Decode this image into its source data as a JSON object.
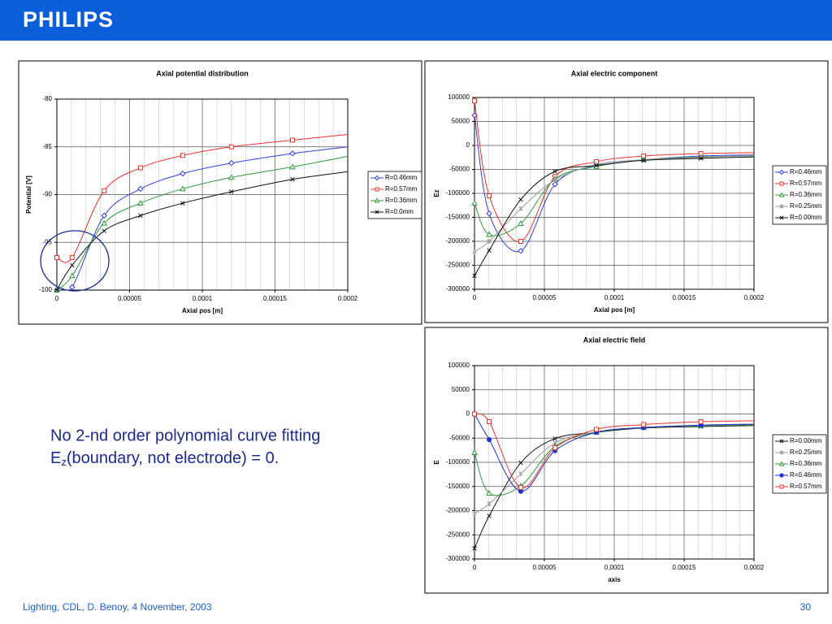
{
  "header": {
    "logo": "PHILIPS"
  },
  "body": {
    "line1": "No 2-nd order polynomial curve fitting",
    "line2": {
      "symbol": "E",
      "subscript": "z",
      "rest": "(boundary, not electrode) = 0."
    }
  },
  "footer": {
    "text": "Lighting, CDL, D. Benoy, 4 November, 2003",
    "page": "30"
  },
  "chart_data": [
    {
      "type": "line",
      "title": "Axial potential distribution",
      "x_label": "Axial pos [m]",
      "y_label": "Potential [V]",
      "x": [
        0,
        1.05e-05,
        3.25e-05,
        5.75e-05,
        8.65e-05,
        0.00012,
        0.000162,
        0.0002
      ],
      "xlim": [
        0,
        0.0002
      ],
      "xticks": [
        0,
        5e-05,
        0.0001,
        0.00015,
        0.0002
      ],
      "ylim": [
        -100,
        -80
      ],
      "yticks": [
        -100,
        -95,
        -90,
        -85,
        -80
      ],
      "grid": true,
      "legend": "right",
      "series": [
        {
          "name": "R=0.46mm",
          "color": "#2f3fe0",
          "marker": "diamond",
          "values": [
            -100,
            -99.7,
            -92.2,
            -89.4,
            -87.8,
            -86.7,
            -85.7,
            -85.0
          ]
        },
        {
          "name": "R=0.57mm",
          "color": "#e8322e",
          "marker": "square",
          "values": [
            -96.6,
            -96.6,
            -89.6,
            -87.2,
            -85.9,
            -85.0,
            -84.3,
            -83.7
          ]
        },
        {
          "name": "R=0.36mm",
          "color": "#2e9a3a",
          "marker": "triangle",
          "values": [
            -100,
            -98.5,
            -93.0,
            -90.9,
            -89.4,
            -88.2,
            -87.1,
            -86.0
          ]
        },
        {
          "name": "R=0.0mm",
          "color": "#111111",
          "marker": "x",
          "values": [
            -100,
            -97.4,
            -93.8,
            -92.2,
            -90.9,
            -89.7,
            -88.4,
            -87.6
          ]
        }
      ]
    },
    {
      "type": "line",
      "title": "Axial electric component",
      "x_label": "Axial pos [m]",
      "y_label": "Ez",
      "x": [
        0,
        1.05e-05,
        3.31e-05,
        5.76e-05,
        8.72e-05,
        0.000121,
        0.000162,
        0.0002
      ],
      "xlim": [
        0,
        0.0002
      ],
      "xticks": [
        0,
        5e-05,
        0.0001,
        0.00015,
        0.0002
      ],
      "ylim": [
        -300000,
        100000
      ],
      "yticks": [
        -300000,
        -250000,
        -200000,
        -150000,
        -100000,
        -50000,
        0,
        50000,
        100000
      ],
      "grid": true,
      "legend": "right",
      "series": [
        {
          "name": "R=0.46mm",
          "color": "#2f3fe0",
          "marker": "diamond",
          "values": [
            62700,
            -142000,
            -220000,
            -81000,
            -41000,
            -30000,
            -22000,
            -20000
          ]
        },
        {
          "name": "R=0.57mm",
          "color": "#e8322e",
          "marker": "square",
          "values": [
            93000,
            -105000,
            -200000,
            -65000,
            -34000,
            -22000,
            -17000,
            -15000
          ]
        },
        {
          "name": "R=0.36mm",
          "color": "#2e9a3a",
          "marker": "triangle",
          "values": [
            -120000,
            -186000,
            -163000,
            -70000,
            -44000,
            -30000,
            -24000,
            -22000
          ]
        },
        {
          "name": "R=0.25mm",
          "color": "#9a9a9a",
          "marker": "star",
          "values": [
            -222000,
            -200000,
            -132000,
            -72000,
            -40000,
            -30000,
            -25000,
            -21000
          ]
        },
        {
          "name": "R=0.00mm",
          "color": "#111111",
          "marker": "x",
          "values": [
            -272000,
            -219000,
            -113000,
            -54000,
            -42000,
            -31000,
            -27000,
            -24000
          ]
        }
      ]
    },
    {
      "type": "line",
      "title": "Axial electric field",
      "x_label": "axis",
      "y_label": "E",
      "x": [
        0,
        1.05e-05,
        3.31e-05,
        5.76e-05,
        8.72e-05,
        0.000121,
        0.000162,
        0.0002
      ],
      "xlim": [
        0,
        0.0002
      ],
      "xticks": [
        0,
        5e-05,
        0.0001,
        0.00015,
        0.0002
      ],
      "ylim": [
        -300000,
        100000
      ],
      "yticks": [
        -300000,
        -250000,
        -200000,
        -150000,
        -100000,
        -50000,
        0,
        50000,
        100000
      ],
      "grid": true,
      "legend": "right",
      "series": [
        {
          "name": "R=0.00mm",
          "color": "#111111",
          "marker": "x",
          "values": [
            -278000,
            -211000,
            -101000,
            -51000,
            -38000,
            -29000,
            -26000,
            -24000
          ]
        },
        {
          "name": "R=0.25mm",
          "color": "#9a9a9a",
          "marker": "star",
          "values": [
            -206000,
            -186000,
            -124000,
            -60000,
            -37000,
            -28000,
            -24000,
            -22000
          ]
        },
        {
          "name": "R=0.36mm",
          "color": "#2e9a3a",
          "marker": "triangle",
          "values": [
            -80000,
            -164000,
            -149000,
            -67000,
            -38000,
            -28000,
            -24000,
            -22000
          ]
        },
        {
          "name": "R=0.46mm",
          "color": "#1f2fd0",
          "marker": "circle",
          "values": [
            0,
            -53000,
            -160000,
            -76000,
            -38000,
            -28000,
            -23000,
            -21000
          ]
        },
        {
          "name": "R=0.57mm",
          "color": "#e8322e",
          "marker": "square",
          "values": [
            0,
            -16000,
            -152000,
            -70000,
            -32000,
            -22000,
            -16000,
            -14000
          ]
        }
      ]
    }
  ]
}
